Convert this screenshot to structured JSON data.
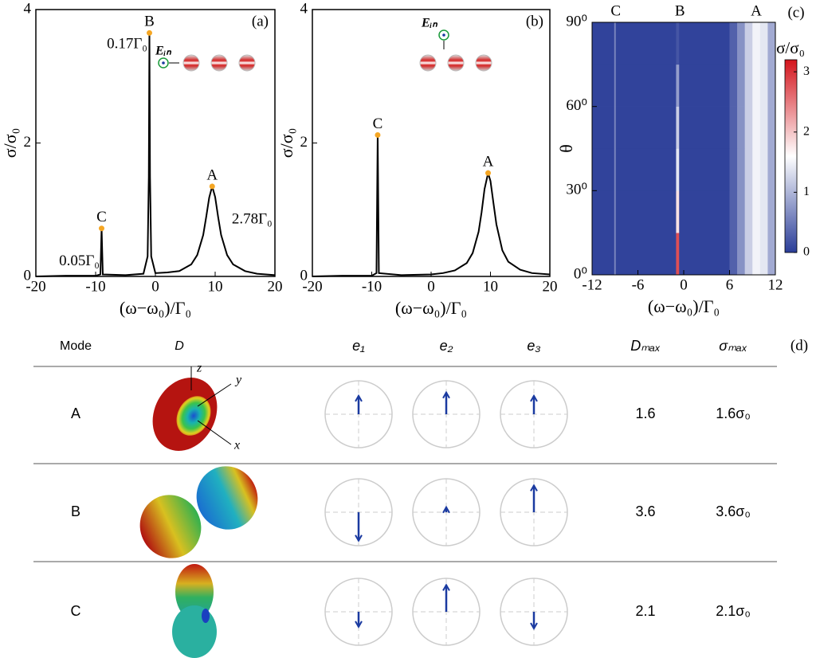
{
  "chart_data": [
    {
      "type": "line",
      "panel_label": "(a)",
      "xlabel": "(ω−ω₀)/Γ₀",
      "ylabel": "σ/σ₀",
      "inset_label": "Eᵢₙ",
      "color": "#000000",
      "marker_color": "#f5a623",
      "xlim": [
        -20,
        20
      ],
      "ylim": [
        0,
        4
      ],
      "xticks": [
        -20,
        -10,
        0,
        10,
        20
      ],
      "yticks": [
        0,
        2,
        4
      ],
      "x": [
        -20,
        -15,
        -10,
        -9.2,
        -9,
        -8.8,
        -5,
        -2,
        -1.3,
        -1.1,
        -1,
        -0.9,
        -0.7,
        0,
        2,
        4,
        6,
        7,
        8,
        8.5,
        9,
        9.5,
        10,
        10.5,
        11,
        12,
        13,
        15,
        17,
        20
      ],
      "values": [
        0,
        0.01,
        0.01,
        0.03,
        0.72,
        0.03,
        0.02,
        0.04,
        0.3,
        1.5,
        3.65,
        1.5,
        0.3,
        0.05,
        0.06,
        0.08,
        0.18,
        0.32,
        0.62,
        0.89,
        1.18,
        1.35,
        1.19,
        0.89,
        0.62,
        0.32,
        0.18,
        0.08,
        0.04,
        0.02
      ],
      "peaks": [
        {
          "label": "C",
          "x": -9,
          "y": 0.72,
          "width_label": "0.05Γ₀"
        },
        {
          "label": "B",
          "x": -1,
          "y": 3.65,
          "width_label": "0.17Γ₀"
        },
        {
          "label": "A",
          "x": 9.5,
          "y": 1.35,
          "width_label": "2.78Γ₀"
        }
      ]
    },
    {
      "type": "line",
      "panel_label": "(b)",
      "xlabel": "(ω−ω₀)/Γ₀",
      "ylabel": "σ/σ₀",
      "inset_label": "Eᵢₙ",
      "color": "#000000",
      "marker_color": "#f5a623",
      "xlim": [
        -20,
        20
      ],
      "ylim": [
        0,
        4
      ],
      "xticks": [
        -20,
        -10,
        0,
        10,
        20
      ],
      "yticks": [
        0,
        2,
        4
      ],
      "x": [
        -20,
        -15,
        -10,
        -9.2,
        -9,
        -8.8,
        -5,
        0,
        2,
        4,
        6,
        7,
        8,
        8.5,
        9,
        9.6,
        10,
        10.5,
        11,
        12,
        13,
        15,
        17,
        20
      ],
      "values": [
        0,
        0.01,
        0.01,
        0.05,
        2.12,
        0.05,
        0.02,
        0.03,
        0.05,
        0.09,
        0.2,
        0.35,
        0.67,
        0.96,
        1.31,
        1.55,
        1.43,
        1.1,
        0.78,
        0.39,
        0.22,
        0.1,
        0.05,
        0.03
      ],
      "peaks": [
        {
          "label": "C",
          "x": -9,
          "y": 2.12
        },
        {
          "label": "A",
          "x": 9.6,
          "y": 1.55
        }
      ]
    },
    {
      "type": "heatmap",
      "panel_label": "(c)",
      "xlabel": "(ω−ω₀)/Γ₀",
      "ylabel": "θ",
      "colorbar_label": "σ/σ₀",
      "xlim": [
        -12,
        12
      ],
      "ylim": [
        0,
        90
      ],
      "xticks": [
        -12,
        -6,
        0,
        6,
        12
      ],
      "yticks": [
        {
          "value": 0,
          "label": "0⁰"
        },
        {
          "value": 30,
          "label": "30⁰"
        },
        {
          "value": 60,
          "label": "60⁰"
        },
        {
          "value": 90,
          "label": "90⁰"
        }
      ],
      "x_edges": [
        -12,
        -9.1,
        -8.9,
        -1,
        -0.6,
        6,
        7,
        8,
        9,
        10,
        11,
        12
      ],
      "y_edges": [
        0,
        15,
        30,
        45,
        60,
        75,
        90
      ],
      "z": [
        [
          0.05,
          0.6,
          0.05,
          2.8,
          0.05,
          0.3,
          0.7,
          1.2,
          1.5,
          1.4,
          0.9
        ],
        [
          0.05,
          0.6,
          0.05,
          1.8,
          0.05,
          0.3,
          0.7,
          1.2,
          1.5,
          1.4,
          0.9
        ],
        [
          0.05,
          0.6,
          0.05,
          1.4,
          0.05,
          0.3,
          0.7,
          1.2,
          1.5,
          1.4,
          0.9
        ],
        [
          0.05,
          0.6,
          0.05,
          1.2,
          0.05,
          0.3,
          0.7,
          1.2,
          1.5,
          1.4,
          0.9
        ],
        [
          0.05,
          0.6,
          0.05,
          0.8,
          0.05,
          0.3,
          0.7,
          1.2,
          1.5,
          1.4,
          0.9
        ],
        [
          0.05,
          0.6,
          0.05,
          0.2,
          0.05,
          0.3,
          0.7,
          1.2,
          1.5,
          1.4,
          0.9
        ]
      ],
      "column_labels": [
        {
          "label": "C",
          "x": -8.9
        },
        {
          "label": "B",
          "x": -0.5
        },
        {
          "label": "A",
          "x": 9.5
        }
      ],
      "colormap": [
        "#2a3d98",
        "#ffffff",
        "#d4141c"
      ],
      "zlim": [
        0,
        3.2
      ],
      "zticks": [
        0,
        1,
        2,
        3
      ]
    }
  ],
  "table": {
    "panel_label": "(d)",
    "headers": [
      "Mode",
      "D",
      "e₁",
      "e₂",
      "e₃",
      "Dₘₐₓ",
      "σₘₐₓ"
    ],
    "D_axes": [
      "z",
      "y",
      "x"
    ],
    "rows": [
      {
        "mode": "A",
        "arrows": [
          0.55,
          0.65,
          0.55
        ],
        "D_max": "1.6",
        "sigma_max": "1.6σ₀"
      },
      {
        "mode": "B",
        "arrows": [
          -0.85,
          0.15,
          0.8
        ],
        "D_max": "3.6",
        "sigma_max": "3.6σ₀"
      },
      {
        "mode": "C",
        "arrows": [
          -0.45,
          0.8,
          -0.5
        ],
        "D_max": "2.1",
        "sigma_max": "2.1σ₀"
      }
    ]
  }
}
